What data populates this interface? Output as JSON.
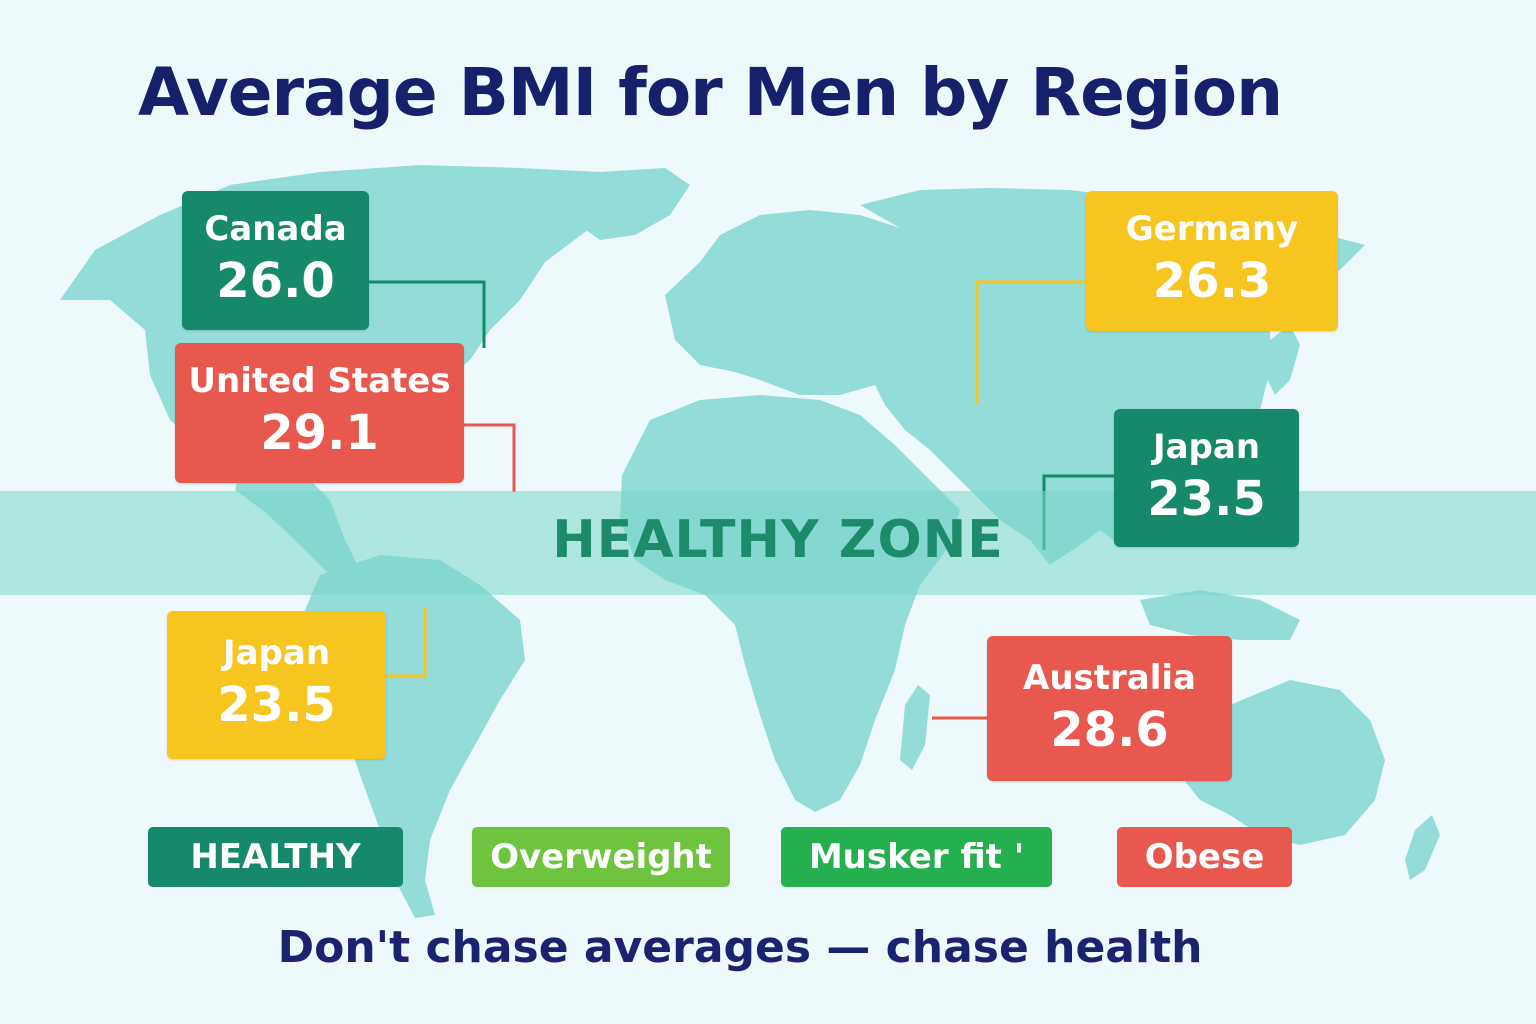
{
  "title": "Average BMI for Men by Region",
  "healthy_zone_label": "HEALTHY ZONE",
  "tagline": "Don't chase averages — chase health",
  "regions": [
    {
      "name": "Canada",
      "value": "26.0"
    },
    {
      "name": "United States",
      "value": "29.1"
    },
    {
      "name": "Germany",
      "value": "26.3"
    },
    {
      "name": "Japan",
      "value": "23.5"
    },
    {
      "name": "Japan",
      "value": "23.5"
    },
    {
      "name": "Australia",
      "value": "28.6"
    }
  ],
  "legend": [
    {
      "label": "HEALTHY"
    },
    {
      "label": "Overweight"
    },
    {
      "label": "Musker fit '"
    },
    {
      "label": "Obese"
    }
  ],
  "colors": {
    "background": "#eef9fb",
    "land": "#93dcd8",
    "title": "#17206b",
    "healthy_dark": "#16896a",
    "obese_red": "#e8584f",
    "overweight_yellow": "#f7c520",
    "overweight_green": "#6fc43f",
    "musker_green": "#25b04f",
    "band": "#78d6c8",
    "band_text": "#1d8a6a"
  }
}
